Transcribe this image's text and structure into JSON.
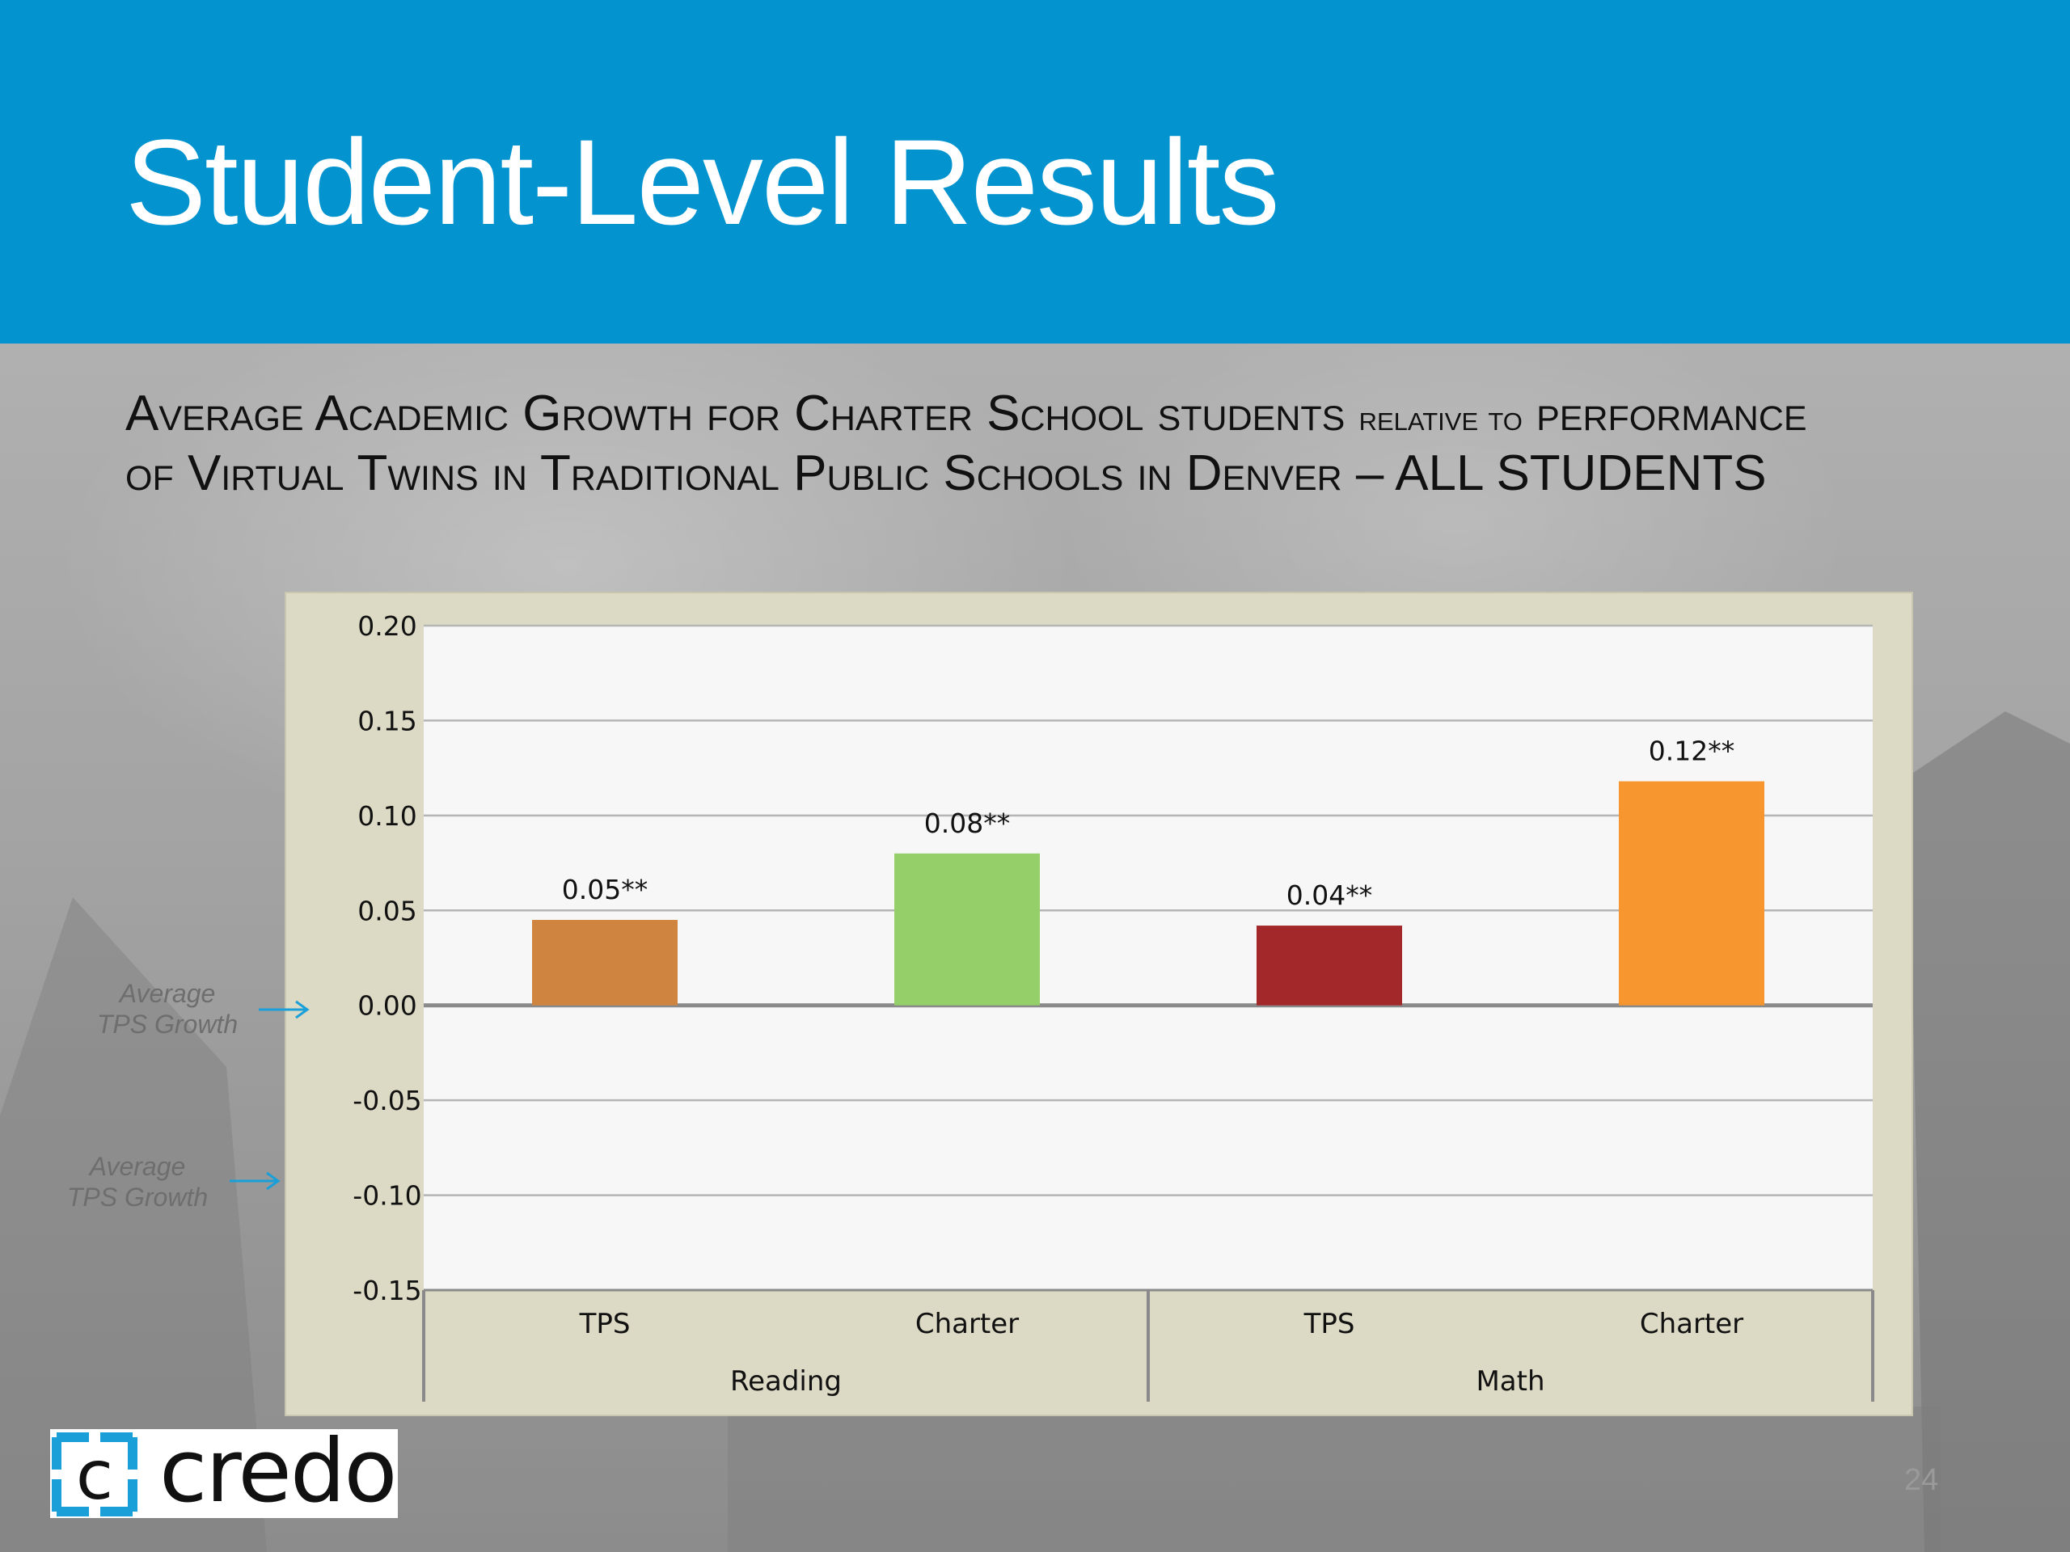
{
  "slide": {
    "title": "Student-Level Results",
    "subtitle_parts": [
      {
        "text": "Average Academic Growth for Charter School students ",
        "small": false
      },
      {
        "text": "relative to",
        "small": true
      },
      {
        "text": " performance of Virtual Twins in Traditional Public Schools in Denver – ALL STUDENTS",
        "small": false
      }
    ],
    "page_number": "24",
    "logo_text": "credo"
  },
  "annotations": [
    {
      "text_line1": "Average",
      "text_line2": "TPS Growth",
      "value": 0.0
    },
    {
      "text_line1": "Average",
      "text_line2": "TPS Growth",
      "value": -0.1
    }
  ],
  "colors": {
    "header": "#0394d0",
    "arrow": "#1a9fd8",
    "plot_bg": "#f7f7f7",
    "panel_bg": "#dcd9c4",
    "grid": "#b5b5b5",
    "zero_line": "#8a8a8a"
  },
  "chart_data": {
    "type": "bar",
    "title": "",
    "xlabel": "",
    "ylabel": "",
    "ylim": [
      -0.15,
      0.2
    ],
    "yticks": [
      "0.20",
      "0.15",
      "0.10",
      "0.05",
      "0.00",
      "-0.05",
      "-0.10",
      "-0.15"
    ],
    "ytick_values": [
      0.2,
      0.15,
      0.1,
      0.05,
      0.0,
      -0.05,
      -0.1,
      -0.15
    ],
    "grid": true,
    "groups": [
      {
        "name": "Reading",
        "categories": [
          "TPS",
          "Charter"
        ]
      },
      {
        "name": "Math",
        "categories": [
          "TPS",
          "Charter"
        ]
      }
    ],
    "bars": [
      {
        "group": "Reading",
        "category": "TPS",
        "value": 0.045,
        "label": "0.05**",
        "color": "#cf8540"
      },
      {
        "group": "Reading",
        "category": "Charter",
        "value": 0.08,
        "label": "0.08**",
        "color": "#95cf6a"
      },
      {
        "group": "Math",
        "category": "TPS",
        "value": 0.042,
        "label": "0.04**",
        "color": "#a3282a"
      },
      {
        "group": "Math",
        "category": "Charter",
        "value": 0.118,
        "label": "0.12**",
        "color": "#f7962e"
      }
    ]
  }
}
